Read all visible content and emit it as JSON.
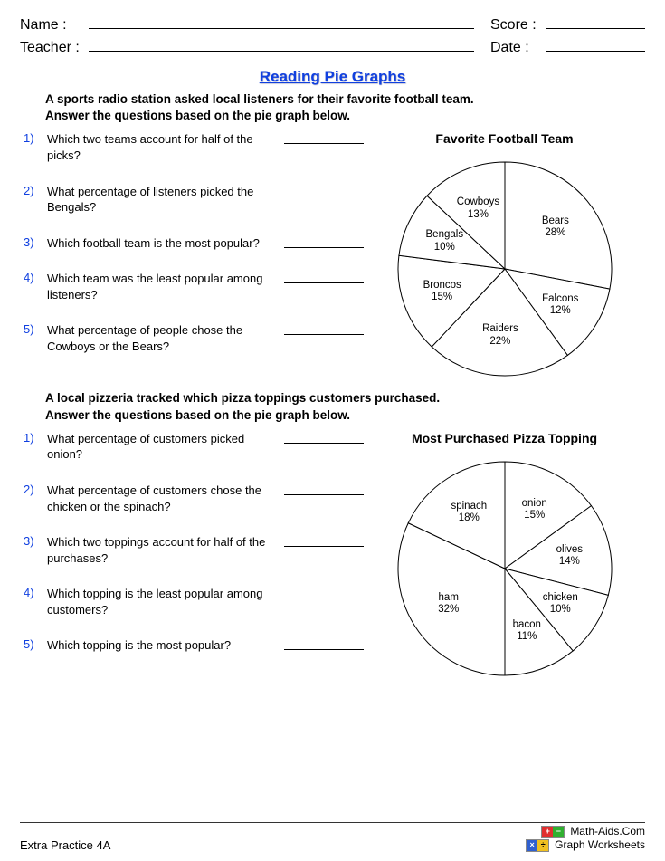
{
  "header": {
    "name_label": "Name :",
    "score_label": "Score :",
    "teacher_label": "Teacher :",
    "date_label": "Date :"
  },
  "title": "Reading Pie Graphs",
  "sections": [
    {
      "prompt_line1": "A sports radio station asked local listeners for their favorite football team.",
      "prompt_line2": "Answer the questions based on the pie graph below.",
      "chart_title": "Favorite Football Team",
      "questions": [
        {
          "n": "1)",
          "t": "Which two teams account for half of the picks?"
        },
        {
          "n": "2)",
          "t": "What percentage of listeners picked the Bengals?"
        },
        {
          "n": "3)",
          "t": "Which football team is the most popular?"
        },
        {
          "n": "4)",
          "t": "Which team was the least popular among listeners?"
        },
        {
          "n": "5)",
          "t": "What percentage of people chose the Cowboys or the Bears?"
        }
      ],
      "pie": {
        "type": "pie",
        "radius": 118,
        "start_angle_deg": -90,
        "stroke": "#000000",
        "stroke_width": 1,
        "fill": "#ffffff",
        "label_fontsize": 11.5,
        "slices": [
          {
            "label": "Bears",
            "pct": 28,
            "value": 28
          },
          {
            "label": "Falcons",
            "pct": 12,
            "value": 12
          },
          {
            "label": "Raiders",
            "pct": 22,
            "value": 22
          },
          {
            "label": "Broncos",
            "pct": 15,
            "value": 15
          },
          {
            "label": "Bengals",
            "pct": 10,
            "value": 10
          },
          {
            "label": "Cowboys",
            "pct": 13,
            "value": 13
          }
        ]
      }
    },
    {
      "prompt_line1": "A local pizzeria tracked which pizza toppings customers purchased.",
      "prompt_line2": "Answer the questions based on the pie graph below.",
      "chart_title": "Most Purchased Pizza Topping",
      "questions": [
        {
          "n": "1)",
          "t": "What percentage of customers picked onion?"
        },
        {
          "n": "2)",
          "t": "What percentage of customers chose the chicken or the spinach?"
        },
        {
          "n": "3)",
          "t": "Which two toppings account for half of the purchases?"
        },
        {
          "n": "4)",
          "t": "Which topping is the least popular among customers?"
        },
        {
          "n": "5)",
          "t": "Which topping is the most popular?"
        }
      ],
      "pie": {
        "type": "pie",
        "radius": 118,
        "start_angle_deg": -90,
        "stroke": "#000000",
        "stroke_width": 1,
        "fill": "#ffffff",
        "label_fontsize": 11.5,
        "slices": [
          {
            "label": "onion",
            "pct": 15,
            "value": 15
          },
          {
            "label": "olives",
            "pct": 14,
            "value": 14
          },
          {
            "label": "chicken",
            "pct": 10,
            "value": 10
          },
          {
            "label": "bacon",
            "pct": 11,
            "value": 11
          },
          {
            "label": "ham",
            "pct": 32,
            "value": 32
          },
          {
            "label": "spinach",
            "pct": 18,
            "value": 18
          }
        ]
      }
    }
  ],
  "footer": {
    "left": "Extra Practice 4A",
    "brand_top": "Math-Aids.Com",
    "brand_bottom": "Graph Worksheets"
  }
}
